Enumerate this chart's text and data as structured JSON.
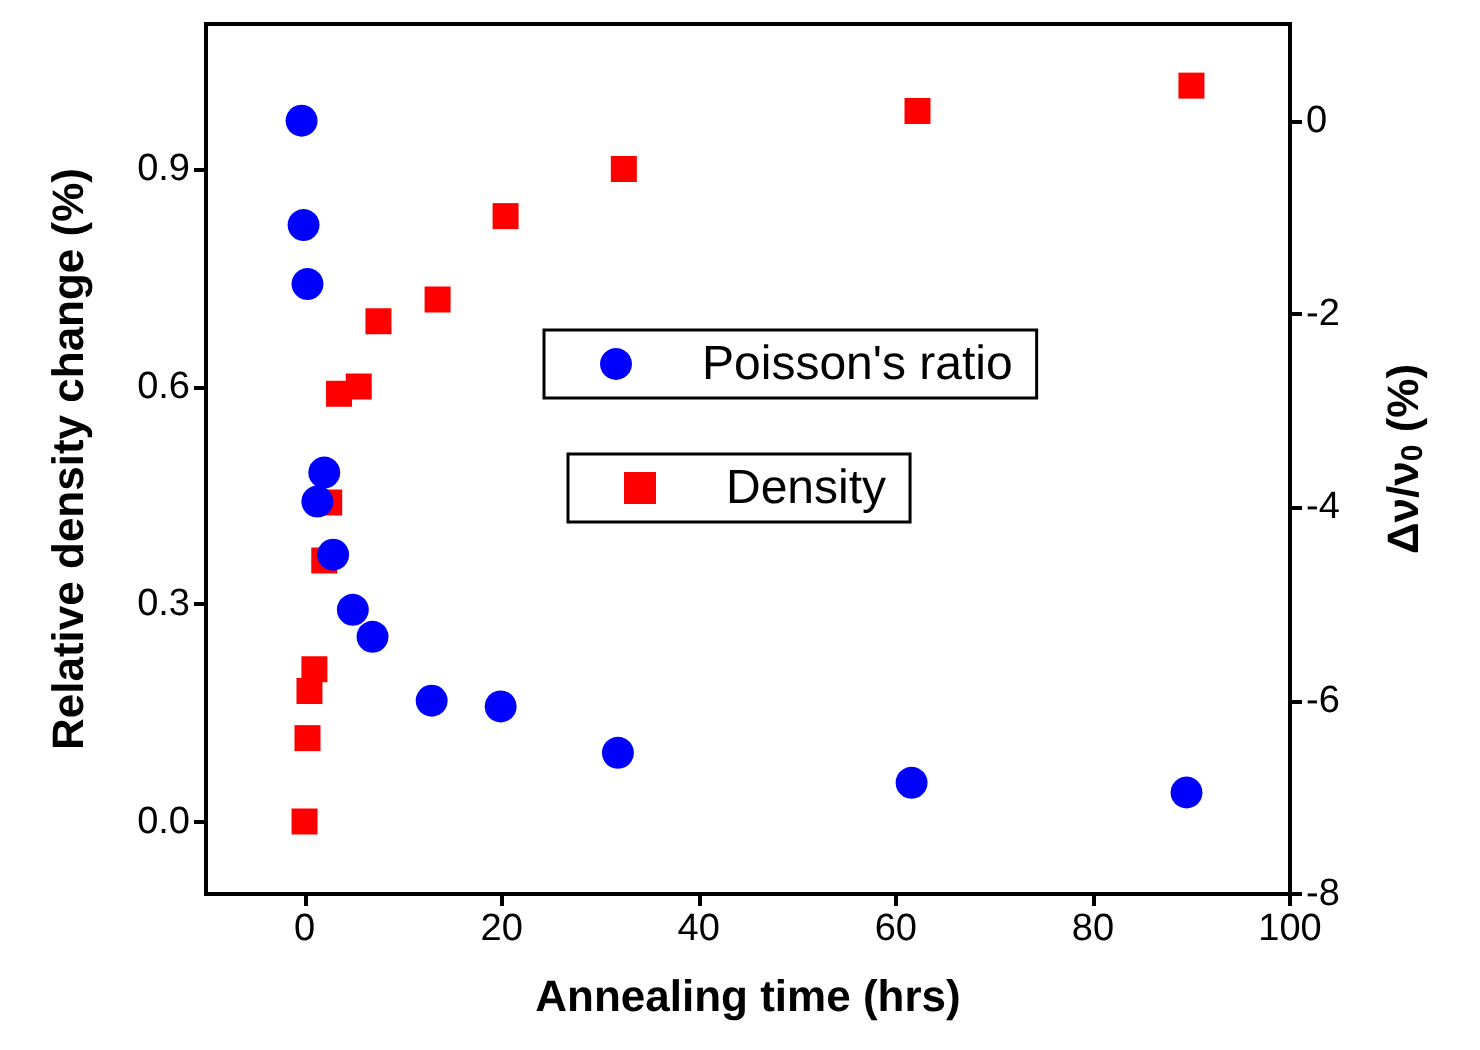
{
  "chart_data": {
    "type": "scatter",
    "xlabel": "Annealing time (hrs)",
    "ylabel": "Relative density change (%)",
    "y2label": "Δν/ν$_{0}$ (%)",
    "xlim": [
      -10,
      100
    ],
    "xticks": [
      0,
      20,
      40,
      60,
      80,
      100
    ],
    "ylim": [
      -0.1,
      1.1
    ],
    "yticks": [
      {
        "value": 0,
        "label": "0.0"
      },
      {
        "value": 0.3,
        "label": "0.3"
      },
      {
        "value": 0.6,
        "label": "0.6"
      },
      {
        "value": 0.9,
        "label": "0.9"
      }
    ],
    "y2lim": [
      -8,
      1
    ],
    "y2ticks": [
      -8,
      -6,
      -4,
      -2,
      0
    ],
    "grid": false,
    "legend": "right",
    "series": [
      {
        "name": "Poisson's ratio",
        "color": "#0000ff",
        "marker": "circle",
        "axis": "y2",
        "x": [
          -0.3,
          -0.1,
          0.3,
          2,
          1.3,
          2.9,
          4.9,
          6.9,
          12.9,
          19.9,
          31.8,
          61.6,
          89.5
        ],
        "values": [
          0.0,
          -1.08,
          -1.69,
          -3.64,
          -3.94,
          -4.49,
          -5.06,
          -5.34,
          -6.0,
          -6.06,
          -6.54,
          -6.85,
          -6.95
        ]
      },
      {
        "name": "Density",
        "color": "#ff0000",
        "marker": "square",
        "x": [
          0,
          0.3,
          0.5,
          1,
          2,
          2.5,
          3.5,
          5.5,
          7.5,
          13.5,
          20.4,
          32.4,
          62.2,
          90
        ],
        "values": [
          0.0,
          0.115,
          0.18,
          0.21,
          0.36,
          0.44,
          0.59,
          0.6,
          0.69,
          0.72,
          0.835,
          0.9,
          0.98,
          1.015
        ]
      }
    ]
  }
}
